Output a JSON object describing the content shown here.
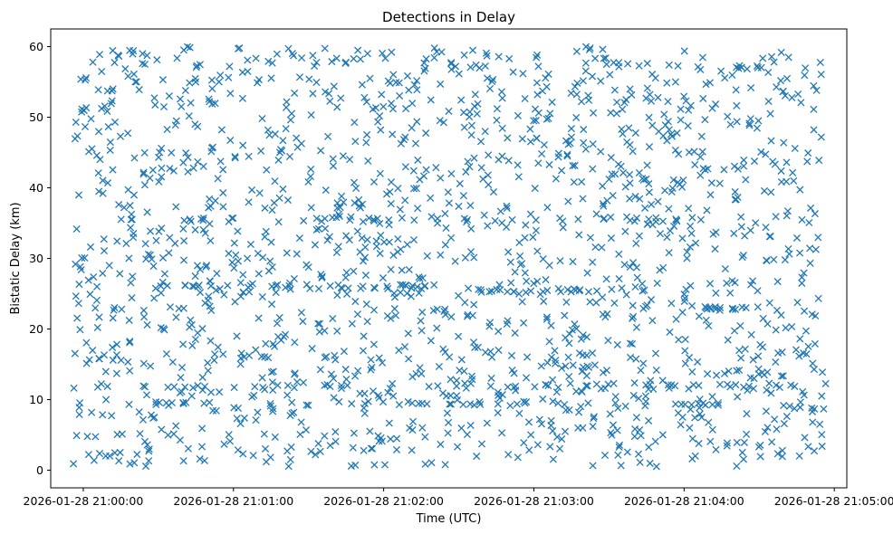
{
  "chart_data": {
    "type": "scatter",
    "title": "Detections in Delay",
    "xlabel": "Time (UTC)",
    "ylabel": "Bistatic Delay (km)",
    "marker": "x",
    "color": "#1f77b4",
    "grid": false,
    "legend": "none",
    "x_is_time": true,
    "xlim": [
      "2026-01-28 20:59:47",
      "2026-01-28 21:05:05"
    ],
    "ylim": [
      -2.5,
      62.5
    ],
    "x_ticks": [
      "2026-01-28 21:00:00",
      "2026-01-28 21:01:00",
      "2026-01-28 21:02:00",
      "2026-01-28 21:03:00",
      "2026-01-28 21:04:00",
      "2026-01-28 21:05:00"
    ],
    "y_ticks": [
      0,
      10,
      20,
      30,
      40,
      50,
      60
    ],
    "bands": [
      {
        "y": 9.5,
        "t_start": "2026-01-28 20:59:56",
        "t_end": "2026-01-28 21:04:14",
        "points": 40
      },
      {
        "y": 12.0,
        "t_start": "2026-01-28 21:00:24",
        "t_end": "2026-01-28 21:04:58",
        "points": 38
      },
      {
        "y": 26.0,
        "t_start": "2026-01-28 21:00:28",
        "t_end": "2026-01-28 21:02:18",
        "points": 36
      },
      {
        "y": 25.5,
        "t_start": "2026-01-28 21:02:36",
        "t_end": "2026-01-28 21:03:40",
        "points": 22
      },
      {
        "y": 35.5,
        "t_start": "2026-01-28 20:59:58",
        "t_end": "2026-01-28 21:04:12",
        "points": 32
      },
      {
        "y": 23.0,
        "t_start": "2026-01-28 21:04:00",
        "t_end": "2026-01-28 21:04:30",
        "points": 14
      },
      {
        "y": 57.0,
        "t_start": "2026-01-28 21:04:20",
        "t_end": "2026-01-28 21:04:38",
        "points": 8
      }
    ],
    "background_points": 1650,
    "background_y_range": [
      0.5,
      60
    ]
  }
}
